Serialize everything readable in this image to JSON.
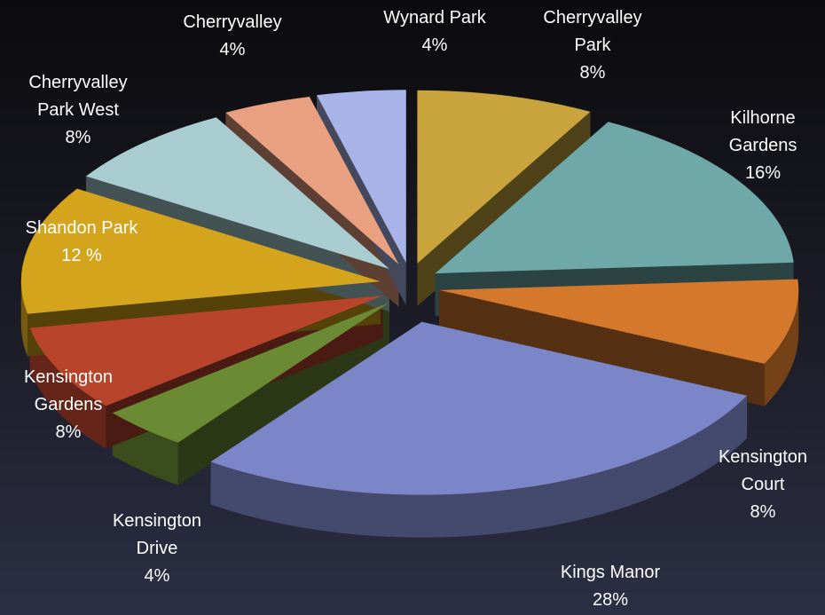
{
  "chart_data": {
    "type": "pie",
    "categories": [
      "Cherryvalley Park",
      "Kilhorne Gardens",
      "Kensington Court",
      "Kings Manor",
      "Kensington Drive",
      "Kensington Gardens",
      "Shandon Park",
      "Cherryvalley Park West",
      "Cherryvalley",
      "Wynard Park"
    ],
    "values": [
      8,
      16,
      8,
      28,
      4,
      8,
      12,
      8,
      4,
      4
    ],
    "value_labels": [
      "8%",
      "16%",
      "8%",
      "28%",
      "4%",
      "8%",
      "12 %",
      "8%",
      "4%",
      "4%"
    ],
    "colors": [
      "#c9a43c",
      "#6fa8a8",
      "#d4782c",
      "#7b86c8",
      "#6b8a34",
      "#b8442c",
      "#d4a41c",
      "#a8ccd0",
      "#e8a080",
      "#a8b4e8"
    ]
  }
}
